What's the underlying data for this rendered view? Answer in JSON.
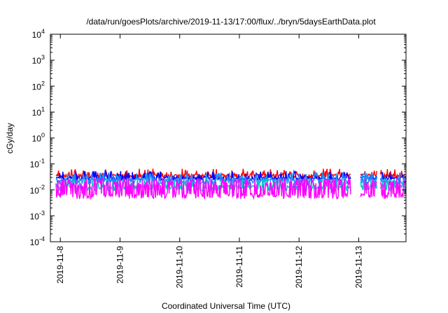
{
  "chart_data": {
    "type": "line",
    "title": "/data/run/goesPlots/archive/2019-11-13/17:00/flux/../bryn/5daysEarthData.plot",
    "xlabel": "Coordinated Universal Time (UTC)",
    "ylabel": "cGy/day",
    "y_scale": "log",
    "ylim": [
      0.0001,
      10000
    ],
    "y_ticks": [
      {
        "mantissa": "10",
        "exp": "-4",
        "value": 0.0001
      },
      {
        "mantissa": "10",
        "exp": "-3",
        "value": 0.001
      },
      {
        "mantissa": "10",
        "exp": "-2",
        "value": 0.01
      },
      {
        "mantissa": "10",
        "exp": "-1",
        "value": 0.1
      },
      {
        "mantissa": "10",
        "exp": "0",
        "value": 1
      },
      {
        "mantissa": "10",
        "exp": "1",
        "value": 10
      },
      {
        "mantissa": "10",
        "exp": "2",
        "value": 100
      },
      {
        "mantissa": "10",
        "exp": "3",
        "value": 1000
      },
      {
        "mantissa": "10",
        "exp": "4",
        "value": 10000
      }
    ],
    "xlim": [
      "2019-11-07 20:00",
      "2019-11-13 19:00"
    ],
    "x_ticks": [
      "2019-11-8",
      "2019-11-9",
      "2019-11-10",
      "2019-11-11",
      "2019-11-12",
      "2019-11-13"
    ],
    "x_tick_dates": [
      "2019-11-08",
      "2019-11-09",
      "2019-11-10",
      "2019-11-11",
      "2019-11-12",
      "2019-11-13"
    ],
    "grid": false,
    "series": [
      {
        "color": "#ff0000",
        "baseline": 0.035,
        "noise": 0.006,
        "spike": 0.055,
        "kind": "upper"
      },
      {
        "color": "#0000ff",
        "baseline": 0.028,
        "noise": 0.005,
        "spike": 0.045,
        "kind": "upper"
      },
      {
        "color": "#1e90ff",
        "baseline": 0.022,
        "noise": 0.006,
        "spike": 0.04,
        "kind": "upper"
      },
      {
        "color": "#00c8c8",
        "baseline": 0.012,
        "noise": 0.003,
        "spike": 0.025,
        "kind": "mid"
      },
      {
        "color": "#ff00ff",
        "baseline": 0.006,
        "noise": 0.0015,
        "spike": 0.025,
        "kind": "lower"
      }
    ],
    "gaps": [
      {
        "start": "2019-11-07 20:00",
        "end": "2019-11-07 22:00"
      },
      {
        "start": "2019-11-12 21:00",
        "end": "2019-11-13 00:30"
      },
      {
        "start": "2019-11-13 07:30",
        "end": "2019-11-13 08:30"
      }
    ]
  }
}
